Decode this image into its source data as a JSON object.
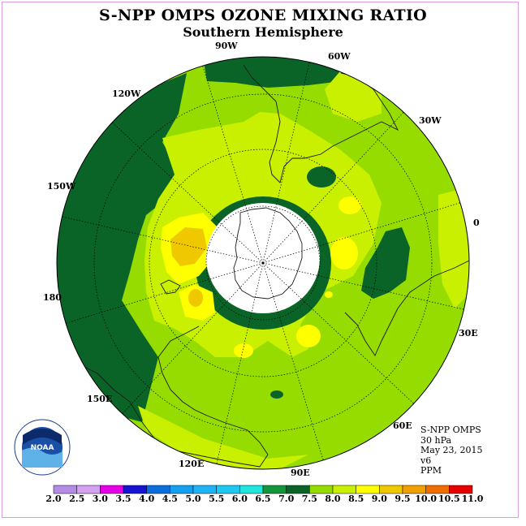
{
  "title": "S-NPP OMPS OZONE MIXING RATIO",
  "subtitle": "Southern Hemisphere",
  "longitude_labels": [
    "90W",
    "60W",
    "30W",
    "0",
    "30E",
    "60E",
    "90E",
    "120E",
    "150E",
    "180",
    "150W",
    "120W"
  ],
  "info": {
    "instrument": "S-NPP OMPS",
    "level": "30 hPa",
    "date": "May 23, 2015",
    "version": "v6",
    "units": "PPM"
  },
  "logo_text": "NOAA",
  "colorbar": {
    "ticks": [
      "2.0",
      "2.5",
      "3.0",
      "3.5",
      "4.0",
      "4.5",
      "5.0",
      "5.5",
      "6.0",
      "6.5",
      "7.0",
      "7.5",
      "8.0",
      "8.5",
      "9.0",
      "9.5",
      "10.0",
      "10.5",
      "11.0"
    ],
    "colors": [
      "#b48ce6",
      "#d4a0f0",
      "#e600e6",
      "#1414d2",
      "#0a6edc",
      "#14a0f0",
      "#1eb4f5",
      "#1ec8f0",
      "#1ee6dc",
      "#14963c",
      "#0a6428",
      "#96dc00",
      "#c8f000",
      "#ffff00",
      "#f0c800",
      "#f0a000",
      "#f06e00",
      "#e60000",
      "#8c5a3c"
    ]
  },
  "map_colors": {
    "background_level": "#96dc00",
    "dark_green": "#0a6428",
    "light_green": "#c8f000",
    "yellow": "#ffff00",
    "orange": "#f0c800"
  }
}
